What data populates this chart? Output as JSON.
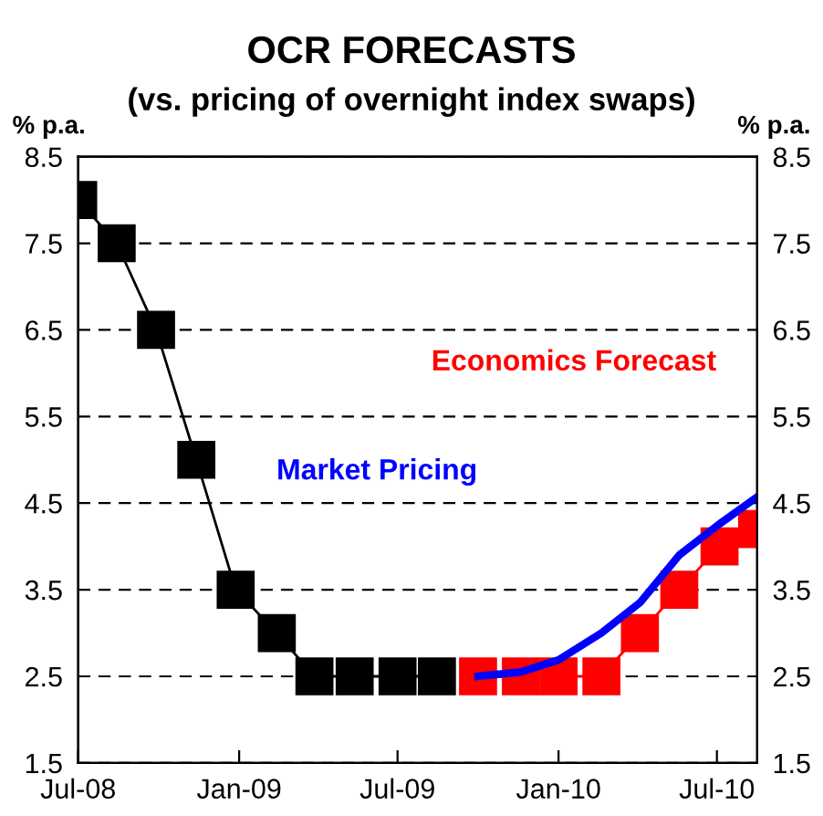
{
  "chart_data": {
    "type": "line",
    "title": "OCR FORECASTS",
    "subtitle": "(vs. pricing of overnight index swaps)",
    "ylabel": "% p.a.",
    "y2label": "% p.a.",
    "xlim": [
      "2008-07-01",
      "2010-08-16"
    ],
    "xticks": [
      {
        "value": "2008-07-01",
        "label": "Jul-08"
      },
      {
        "value": "2009-01-01",
        "label": "Jan-09"
      },
      {
        "value": "2009-07-01",
        "label": "Jul-09"
      },
      {
        "value": "2010-01-01",
        "label": "Jan-10"
      },
      {
        "value": "2010-07-01",
        "label": "Jul-10"
      }
    ],
    "ylim": [
      1.5,
      8.5
    ],
    "yticks": [
      1.5,
      2.5,
      3.5,
      4.5,
      5.5,
      6.5,
      7.5,
      8.5
    ],
    "y2lim": [
      1.5,
      8.5
    ],
    "y2ticks": [
      1.5,
      2.5,
      3.5,
      4.5,
      5.5,
      6.5,
      7.5,
      8.5
    ],
    "grid": "y",
    "legend": false,
    "series": [
      {
        "color": "#000000",
        "marker": "square",
        "x": [
          "2008-07-01",
          "2008-08-14",
          "2008-09-28",
          "2008-11-13",
          "2008-12-28",
          "2009-02-13",
          "2009-03-28",
          "2009-05-13",
          "2009-07-01",
          "2009-08-15"
        ],
        "values": [
          8.0,
          7.5,
          6.5,
          5.0,
          3.5,
          3.0,
          2.5,
          2.5,
          2.5,
          2.5
        ]
      },
      {
        "name": "Economics Forecast",
        "color": "#ff0000",
        "marker": "square",
        "x": [
          "2009-10-01",
          "2009-11-19",
          "2010-01-01",
          "2010-02-19",
          "2010-04-04",
          "2010-05-19",
          "2010-07-04",
          "2010-08-16"
        ],
        "values": [
          2.5,
          2.5,
          2.5,
          2.5,
          3.0,
          3.5,
          4.0,
          4.2
        ]
      },
      {
        "name": "Market Pricing",
        "color": "#0000ff",
        "marker": "none",
        "x": [
          "2009-10-01",
          "2009-11-19",
          "2010-01-01",
          "2010-02-19",
          "2010-04-04",
          "2010-05-19",
          "2010-07-04",
          "2010-08-16"
        ],
        "values": [
          2.5,
          2.55,
          2.69,
          3.0,
          3.35,
          3.9,
          4.26,
          4.57
        ]
      }
    ]
  }
}
